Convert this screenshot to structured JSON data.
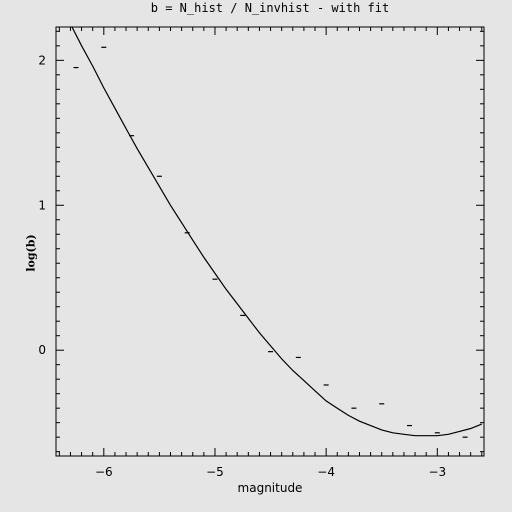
{
  "chart_data": {
    "type": "scatter",
    "title": "b = N_hist / N_invhist - with fit",
    "xlabel": "magnitude",
    "ylabel": "log(b)",
    "xlim": [
      -6.43,
      -2.58
    ],
    "ylim": [
      -0.73,
      2.23
    ],
    "x_ticks": [
      -6,
      -5,
      -4,
      -3
    ],
    "y_ticks": [
      0,
      1,
      2
    ],
    "grid": false,
    "series": [
      {
        "kind": "points",
        "x": [
          -6.25,
          -6.0,
          -5.75,
          -5.5,
          -5.25,
          -5.0,
          -4.75,
          -4.5,
          -4.25,
          -4.0,
          -3.75,
          -3.5,
          -3.25,
          -3.0,
          -2.75
        ],
        "y": [
          1.95,
          2.09,
          1.48,
          1.2,
          0.81,
          0.49,
          0.24,
          -0.01,
          -0.05,
          -0.24,
          -0.4,
          -0.37,
          -0.52,
          -0.57,
          -0.6
        ]
      },
      {
        "kind": "fit-line",
        "x": [
          -6.3,
          -6.2,
          -6.1,
          -6.0,
          -5.9,
          -5.8,
          -5.7,
          -5.6,
          -5.5,
          -5.4,
          -5.3,
          -5.2,
          -5.1,
          -5.0,
          -4.9,
          -4.8,
          -4.7,
          -4.6,
          -4.5,
          -4.4,
          -4.3,
          -4.2,
          -4.1,
          -4.0,
          -3.9,
          -3.8,
          -3.7,
          -3.6,
          -3.5,
          -3.4,
          -3.3,
          -3.2,
          -3.1,
          -3.0,
          -2.9,
          -2.8,
          -2.7,
          -2.6
        ],
        "y": [
          2.25,
          2.1,
          1.96,
          1.81,
          1.67,
          1.53,
          1.39,
          1.26,
          1.13,
          1.0,
          0.88,
          0.76,
          0.64,
          0.53,
          0.42,
          0.32,
          0.22,
          0.12,
          0.03,
          -0.06,
          -0.14,
          -0.21,
          -0.28,
          -0.35,
          -0.4,
          -0.45,
          -0.49,
          -0.52,
          -0.55,
          -0.57,
          -0.58,
          -0.59,
          -0.59,
          -0.59,
          -0.58,
          -0.56,
          -0.54,
          -0.51
        ]
      }
    ]
  }
}
